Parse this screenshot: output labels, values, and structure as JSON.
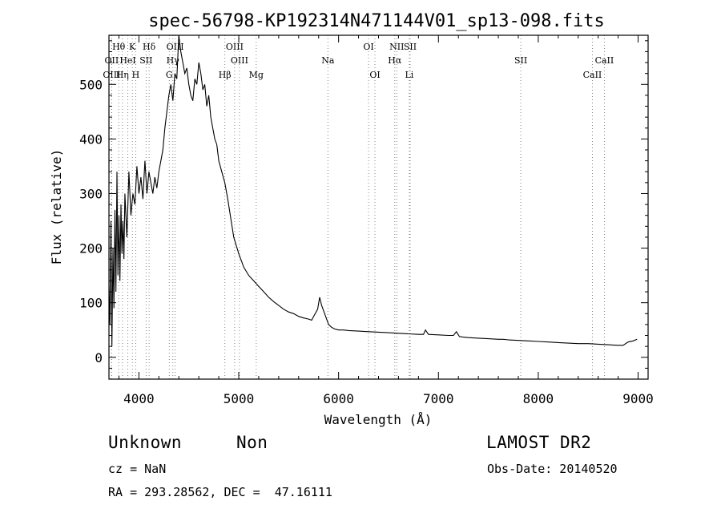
{
  "chart_data": {
    "type": "line",
    "title": "spec-56798-KP192314N471144V01_sp13-098.fits",
    "xlabel": "Wavelength (Å)",
    "ylabel": "Flux (relative)",
    "xlim": [
      3700,
      9100
    ],
    "ylim": [
      -40,
      590
    ],
    "xticks": [
      4000,
      5000,
      6000,
      7000,
      8000,
      9000
    ],
    "yticks": [
      0,
      100,
      200,
      300,
      400,
      500
    ],
    "grid": false,
    "series": [
      {
        "x": [
          3700,
          3710,
          3720,
          3730,
          3740,
          3750,
          3760,
          3770,
          3780,
          3790,
          3800,
          3810,
          3820,
          3830,
          3840,
          3850,
          3860,
          3880,
          3900,
          3920,
          3940,
          3960,
          3980,
          4000,
          4020,
          4040,
          4060,
          4080,
          4100,
          4120,
          4140,
          4160,
          4180,
          4200,
          4220,
          4240,
          4260,
          4280,
          4300,
          4320,
          4340,
          4360,
          4380,
          4400,
          4420,
          4440,
          4460,
          4480,
          4500,
          4520,
          4540,
          4560,
          4580,
          4600,
          4620,
          4640,
          4660,
          4680,
          4700,
          4720,
          4740,
          4760,
          4780,
          4800,
          4830,
          4860,
          4890,
          4920,
          4950,
          5000,
          5050,
          5100,
          5150,
          5200,
          5250,
          5300,
          5350,
          5400,
          5450,
          5500,
          5550,
          5600,
          5650,
          5700,
          5730,
          5760,
          5790,
          5810,
          5830,
          5850,
          5880,
          5900,
          5930,
          5960,
          6000,
          6050,
          6100,
          6200,
          6300,
          6400,
          6500,
          6600,
          6700,
          6800,
          6850,
          6870,
          6900,
          7000,
          7100,
          7150,
          7180,
          7210,
          7250,
          7300,
          7400,
          7500,
          7600,
          7650,
          7700,
          7800,
          7900,
          8000,
          8100,
          8200,
          8300,
          8400,
          8500,
          8600,
          8700,
          8800,
          8850,
          8900,
          8950,
          8990
        ],
        "y": [
          130,
          60,
          250,
          20,
          200,
          90,
          270,
          120,
          340,
          150,
          260,
          140,
          280,
          190,
          250,
          180,
          300,
          220,
          340,
          260,
          300,
          280,
          350,
          300,
          330,
          290,
          360,
          300,
          340,
          320,
          300,
          330,
          310,
          340,
          360,
          380,
          420,
          450,
          480,
          500,
          470,
          520,
          510,
          590,
          560,
          540,
          520,
          530,
          500,
          480,
          470,
          510,
          500,
          540,
          520,
          490,
          500,
          460,
          480,
          440,
          420,
          400,
          390,
          360,
          340,
          320,
          290,
          255,
          220,
          190,
          165,
          150,
          140,
          130,
          120,
          110,
          102,
          95,
          88,
          83,
          80,
          75,
          72,
          70,
          68,
          78,
          88,
          110,
          95,
          85,
          70,
          60,
          55,
          52,
          50,
          50,
          49,
          48,
          47,
          46,
          45,
          44,
          43,
          42,
          42,
          50,
          42,
          41,
          40,
          40,
          47,
          38,
          37,
          36,
          35,
          34,
          33,
          33,
          32,
          31,
          30,
          29,
          28,
          27,
          26,
          25,
          25,
          24,
          23,
          22,
          22,
          28,
          30,
          33
        ]
      }
    ],
    "lines": [
      {
        "label": "Hθ",
        "x": 3798,
        "row": 0
      },
      {
        "label": "OII",
        "x": 3727,
        "row": 1
      },
      {
        "label": "OIII",
        "x": 3727,
        "row": 2
      },
      {
        "label": "K",
        "x": 3934,
        "row": 0
      },
      {
        "label": "HeI",
        "x": 3889,
        "row": 1
      },
      {
        "label": "Hη",
        "x": 3835,
        "row": 2
      },
      {
        "label": "H",
        "x": 3968,
        "row": 2
      },
      {
        "label": "SII",
        "x": 4072,
        "row": 1
      },
      {
        "label": "Hδ",
        "x": 4102,
        "row": 0
      },
      {
        "label": "OIII",
        "x": 4363,
        "row": 0
      },
      {
        "label": "Hγ",
        "x": 4340,
        "row": 1
      },
      {
        "label": "G",
        "x": 4304,
        "row": 2
      },
      {
        "label": "Hβ",
        "x": 4861,
        "row": 2
      },
      {
        "label": "OIII",
        "x": 4959,
        "row": 0
      },
      {
        "label": "OIII",
        "x": 5007,
        "row": 1
      },
      {
        "label": "Mg",
        "x": 5175,
        "row": 2
      },
      {
        "label": "Na",
        "x": 5893,
        "row": 1
      },
      {
        "label": "OI",
        "x": 6300,
        "row": 0
      },
      {
        "label": "OI",
        "x": 6364,
        "row": 2
      },
      {
        "label": "NII",
        "x": 6583,
        "row": 0
      },
      {
        "label": "Hα",
        "x": 6563,
        "row": 1
      },
      {
        "label": "SII",
        "x": 6717,
        "row": 0
      },
      {
        "label": "Li",
        "x": 6708,
        "row": 2
      },
      {
        "label": "SII",
        "x": 7825,
        "row": 1
      },
      {
        "label": "CaII",
        "x": 8662,
        "row": 1
      },
      {
        "label": "CaII",
        "x": 8542,
        "row": 2
      }
    ]
  },
  "info": {
    "class_label": "Unknown",
    "subclass_label": "Non",
    "survey_label": "LAMOST DR2",
    "cz_line": "cz = NaN",
    "obs_date_line": "Obs-Date: 20140520",
    "radec_line": "RA = 293.28562, DEC =  47.16111"
  }
}
